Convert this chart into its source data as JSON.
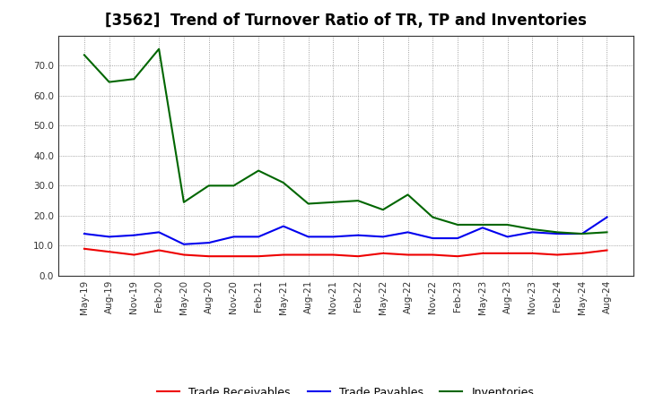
{
  "title": "[3562]  Trend of Turnover Ratio of TR, TP and Inventories",
  "x_labels": [
    "May-19",
    "Aug-19",
    "Nov-19",
    "Feb-20",
    "May-20",
    "Aug-20",
    "Nov-20",
    "Feb-21",
    "May-21",
    "Aug-21",
    "Nov-21",
    "Feb-22",
    "May-22",
    "Aug-22",
    "Nov-22",
    "Feb-23",
    "May-23",
    "Aug-23",
    "Nov-23",
    "Feb-24",
    "May-24",
    "Aug-24"
  ],
  "trade_receivables": [
    9.0,
    8.0,
    7.0,
    8.5,
    7.0,
    6.5,
    6.5,
    6.5,
    7.0,
    7.0,
    7.0,
    6.5,
    7.5,
    7.0,
    7.0,
    6.5,
    7.5,
    7.5,
    7.5,
    7.0,
    7.5,
    8.5
  ],
  "trade_payables": [
    14.0,
    13.0,
    13.5,
    14.5,
    10.5,
    11.0,
    13.0,
    13.0,
    16.5,
    13.0,
    13.0,
    13.5,
    13.0,
    14.5,
    12.5,
    12.5,
    16.0,
    13.0,
    14.5,
    14.0,
    14.0,
    19.5
  ],
  "inventories": [
    73.5,
    64.5,
    65.5,
    75.5,
    24.5,
    30.0,
    30.0,
    35.0,
    31.0,
    24.0,
    24.5,
    25.0,
    22.0,
    27.0,
    19.5,
    17.0,
    17.0,
    17.0,
    15.5,
    14.5,
    14.0,
    14.5
  ],
  "tr_color": "#EE0000",
  "tp_color": "#0000EE",
  "inv_color": "#006600",
  "ylim": [
    0.0,
    80.0
  ],
  "yticks": [
    0.0,
    10.0,
    20.0,
    30.0,
    40.0,
    50.0,
    60.0,
    70.0
  ],
  "legend_labels": [
    "Trade Receivables",
    "Trade Payables",
    "Inventories"
  ],
  "background_color": "#FFFFFF",
  "plot_bg_color": "#FFFFFF",
  "grid_color": "#888888",
  "title_fontsize": 12,
  "tick_fontsize": 7.5,
  "legend_fontsize": 9
}
